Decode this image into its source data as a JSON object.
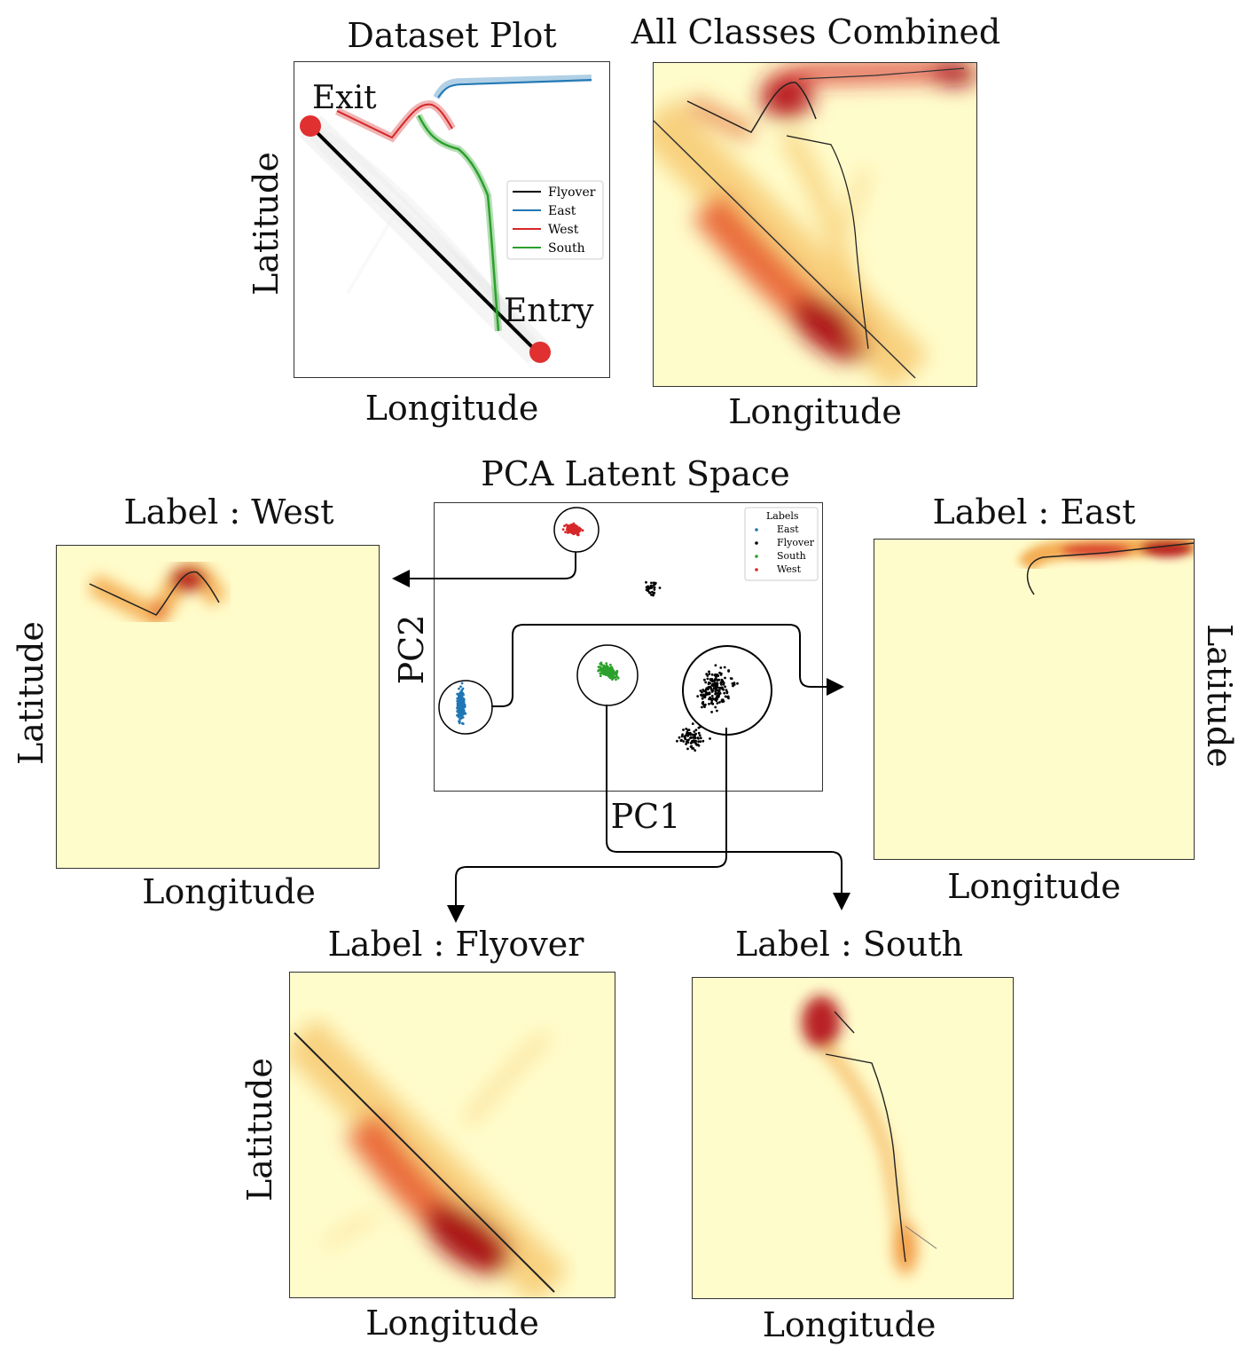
{
  "dataset_plot": {
    "title": "Dataset Plot",
    "xlabel": "Longitude",
    "ylabel": "Latitude",
    "exit_label": "Exit",
    "entry_label": "Entry",
    "legend": [
      {
        "label": "Flyover",
        "color": "#000000"
      },
      {
        "label": "East",
        "color": "#1f77b4"
      },
      {
        "label": "West",
        "color": "#d62728"
      },
      {
        "label": "South",
        "color": "#2ca02c"
      }
    ]
  },
  "combined": {
    "title": "All Classes Combined",
    "xlabel": "Longitude"
  },
  "pca": {
    "title": "PCA Latent Space",
    "xlabel": "PC1",
    "ylabel": "PC2",
    "legend_title": "Labels",
    "legend": [
      {
        "label": "East",
        "color": "#1f77b4"
      },
      {
        "label": "Flyover",
        "color": "#000000"
      },
      {
        "label": "South",
        "color": "#2ca02c"
      },
      {
        "label": "West",
        "color": "#d62728"
      }
    ]
  },
  "west": {
    "title": "Label : West",
    "xlabel": "Longitude",
    "ylabel": "Latitude"
  },
  "east": {
    "title": "Label : East",
    "xlabel": "Longitude",
    "ylabel": "Latitude"
  },
  "flyover": {
    "title": "Label : Flyover",
    "xlabel": "Longitude",
    "ylabel": "Latitude"
  },
  "south": {
    "title": "Label : South",
    "xlabel": "Longitude"
  },
  "colors": {
    "heat_bg": "#fffccb",
    "heat_mid": "#f4a235",
    "heat_high": "#c8141c",
    "marker_red": "#e03030"
  }
}
